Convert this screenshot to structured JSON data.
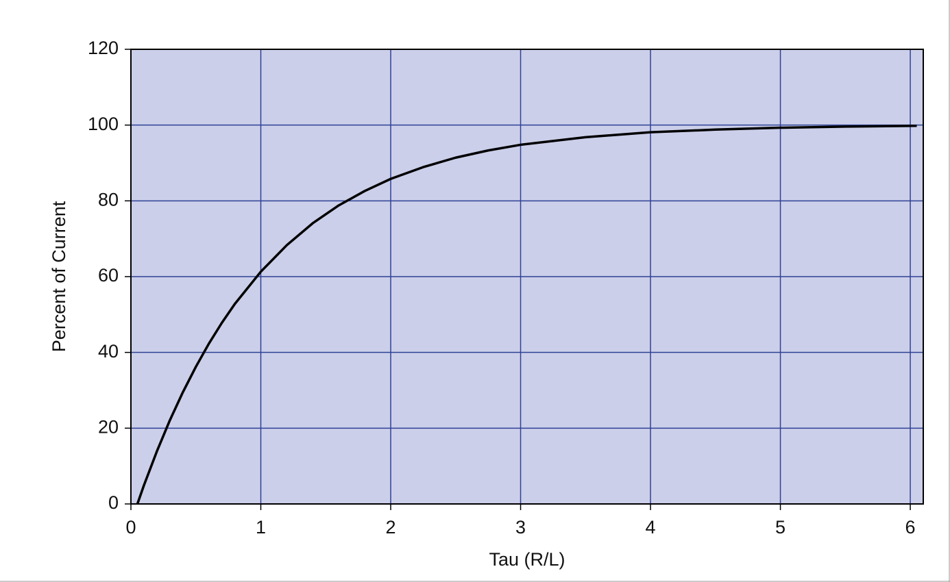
{
  "chart_data": {
    "type": "line",
    "x_label": "Tau (R/L)",
    "y_label": "Percent of Current",
    "x": [
      0.05,
      0.1,
      0.2,
      0.3,
      0.4,
      0.5,
      0.6,
      0.7,
      0.8,
      1.0,
      1.2,
      1.4,
      1.6,
      1.8,
      2.0,
      2.25,
      2.5,
      2.75,
      3.0,
      3.5,
      4.0,
      4.5,
      5.0,
      5.5,
      6.05
    ],
    "values": [
      0,
      4.9,
      13.9,
      22.1,
      29.5,
      36.2,
      42.3,
      47.8,
      52.8,
      61.3,
      68.3,
      74.1,
      78.8,
      82.6,
      85.8,
      88.9,
      91.4,
      93.3,
      94.8,
      96.8,
      98.1,
      98.8,
      99.3,
      99.6,
      99.8
    ],
    "color": "#000000",
    "xlim": [
      0,
      6.1
    ],
    "xticks": [
      0,
      1,
      2,
      3,
      4,
      5,
      6
    ],
    "ylim": [
      0,
      120
    ],
    "yticks": [
      0,
      20,
      40,
      60,
      80,
      100,
      120
    ],
    "grid": true
  }
}
